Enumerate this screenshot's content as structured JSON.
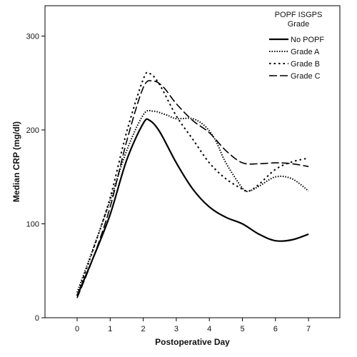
{
  "chart_data": {
    "type": "line",
    "xlabel": "Postoperative Day",
    "ylabel": "Median CRP (mg/dl)",
    "xlim": [
      -1,
      8
    ],
    "ylim": [
      0,
      330
    ],
    "x_ticks": [
      0,
      1,
      2,
      3,
      4,
      5,
      6,
      7
    ],
    "y_ticks": [
      0,
      100,
      200,
      300
    ],
    "grid": false,
    "legend": {
      "title_line1": "POPF ISGPS",
      "title_line2": "Grade",
      "placement": "top-right"
    },
    "series": [
      {
        "name": "No POPF",
        "style": "solid",
        "x": [
          0,
          0.5,
          1,
          1.5,
          2,
          2.2,
          2.5,
          3,
          3.5,
          4,
          4.5,
          5,
          5.5,
          6,
          6.5,
          7
        ],
        "y": [
          23,
          65,
          110,
          168,
          207,
          210,
          198,
          165,
          137,
          118,
          107,
          100,
          89,
          82,
          83,
          89
        ]
      },
      {
        "name": "Grade A",
        "style": "dotted",
        "x": [
          0,
          0.5,
          1,
          1.5,
          2,
          2.3,
          2.7,
          3,
          3.5,
          3.9,
          4.2,
          4.5,
          5,
          5.2,
          5.5,
          6,
          6.5,
          7
        ],
        "y": [
          27,
          75,
          125,
          178,
          216,
          220,
          216,
          212,
          212,
          203,
          188,
          165,
          138,
          135,
          140,
          150,
          148,
          135
        ]
      },
      {
        "name": "Grade B",
        "style": "short-dash",
        "x": [
          0,
          0.5,
          1,
          1.5,
          2,
          2.2,
          2.5,
          3,
          3.5,
          4,
          4.5,
          5,
          5.2,
          5.5,
          6,
          6.5,
          7
        ],
        "y": [
          24,
          74,
          128,
          198,
          254,
          260,
          248,
          215,
          190,
          165,
          148,
          137,
          135,
          142,
          158,
          166,
          170
        ]
      },
      {
        "name": "Grade C",
        "style": "long-dash",
        "x": [
          0,
          0.5,
          1,
          1.5,
          2,
          2.3,
          2.6,
          3,
          3.5,
          4,
          4.5,
          5,
          5.5,
          6,
          6.5,
          7
        ],
        "y": [
          21,
          65,
          118,
          188,
          245,
          252,
          246,
          228,
          210,
          197,
          178,
          165,
          164,
          165,
          164,
          161
        ]
      }
    ]
  }
}
